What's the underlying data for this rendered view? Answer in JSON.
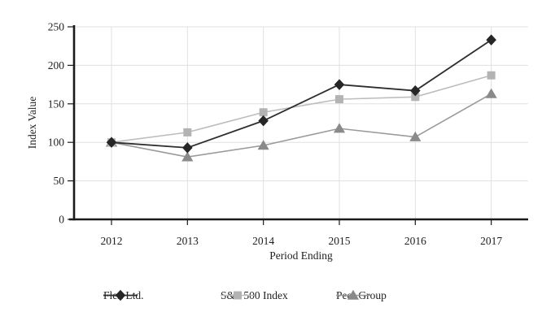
{
  "chart_data": {
    "type": "line",
    "title": "",
    "xlabel": "Period Ending",
    "ylabel": "Index Value",
    "categories": [
      "2012",
      "2013",
      "2014",
      "2015",
      "2016",
      "2017"
    ],
    "ylim": [
      0,
      250
    ],
    "yticks": [
      0,
      50,
      100,
      150,
      200,
      250
    ],
    "grid": true,
    "legend_position": "bottom",
    "series": [
      {
        "name": "Flex Ltd.",
        "marker": "diamond",
        "color": "#2e2e2e",
        "marker_color": "#262626",
        "values": [
          100,
          93,
          128,
          175,
          167,
          233
        ]
      },
      {
        "name": "S&P 500 Index",
        "marker": "square",
        "color": "#bdbdbd",
        "marker_color": "#b3b3b3",
        "values": [
          100,
          113,
          139,
          156,
          159,
          187
        ]
      },
      {
        "name": "Peer Group",
        "marker": "triangle",
        "color": "#9a9a9a",
        "marker_color": "#8a8a8a",
        "values": [
          100,
          81,
          96,
          118,
          107,
          163
        ]
      }
    ],
    "colors": {
      "axis": "#1a1a1a",
      "grid": "#e0e0e0",
      "text": "#1f1f1f",
      "background": "#ffffff"
    }
  }
}
